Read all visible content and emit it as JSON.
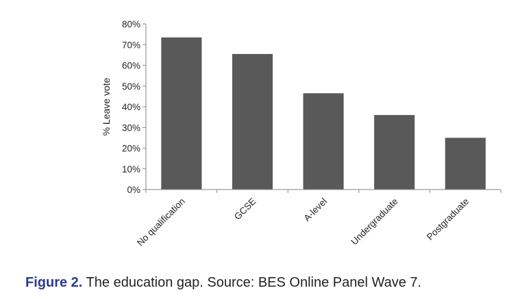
{
  "chart_data": {
    "type": "bar",
    "title": "",
    "xlabel": "",
    "ylabel": "% Leave vote",
    "categories": [
      "No qualification",
      "GCSE",
      "A-level",
      "Undergraduate",
      "Postgraduate"
    ],
    "values": [
      73.5,
      65.5,
      46.5,
      36,
      25
    ],
    "ylim": [
      0,
      80
    ],
    "yticks": [
      "0%",
      "10%",
      "20%",
      "30%",
      "40%",
      "50%",
      "60%",
      "70%",
      "80%"
    ],
    "grid": false,
    "legend": "none",
    "bar_color": "#595959"
  },
  "caption": {
    "label": "Figure 2.",
    "text": " The education gap. Source: BES Online Panel Wave 7.",
    "label_color": "#2b3a8f"
  }
}
